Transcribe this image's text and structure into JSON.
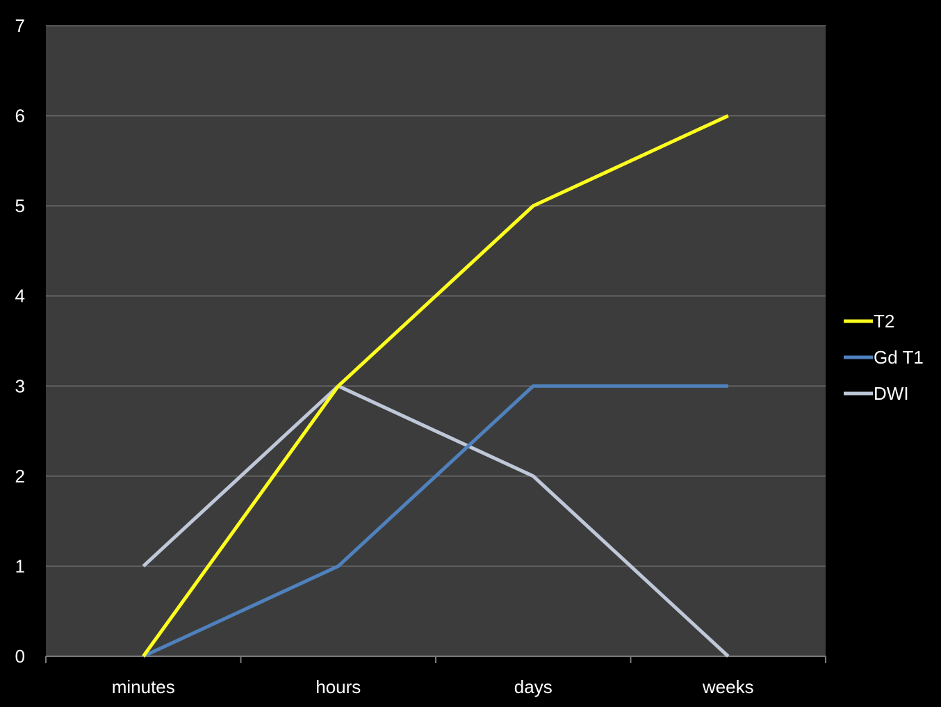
{
  "chart_data": {
    "type": "line",
    "categories": [
      "minutes",
      "hours",
      "days",
      "weeks"
    ],
    "ylim": [
      0,
      7
    ],
    "yticks": [
      "0",
      "1",
      "2",
      "3",
      "4",
      "5",
      "6",
      "7"
    ],
    "grid": true,
    "legend_position": "right",
    "series": [
      {
        "name": "T2",
        "values": [
          0,
          3,
          5,
          6
        ],
        "color": "#ffff1f"
      },
      {
        "name": "Gd T1",
        "values": [
          0,
          1,
          3,
          3
        ],
        "color": "#4f81bd"
      },
      {
        "name": "DWI",
        "values": [
          1,
          3,
          2,
          0
        ],
        "color": "#bfc8d8"
      }
    ]
  },
  "colors": {
    "page_background": "#000000",
    "plot_background": "#3c3c3c",
    "gridline": "#6b6b6b",
    "axis_line": "#7a7a7a",
    "text": "#ffffff"
  }
}
